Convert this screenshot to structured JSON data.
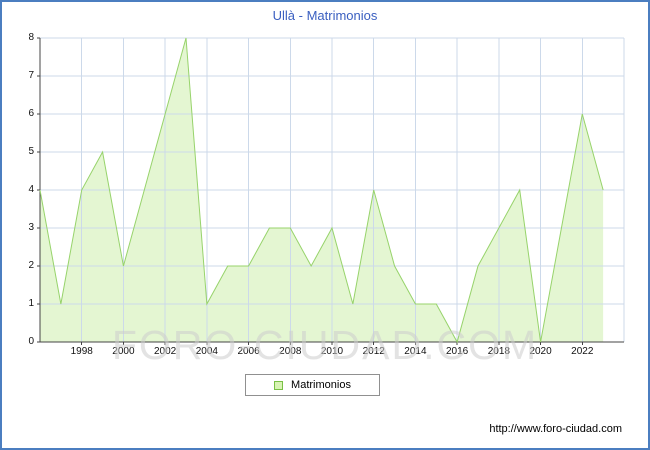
{
  "window": {
    "title": "Ullà - Matrimonios",
    "frame_color": "#4b7ec0",
    "title_color": "#3a5fc0"
  },
  "legend": {
    "label": "Matrimonios",
    "swatch_fill": "#d8f3b4",
    "swatch_border": "#79c045"
  },
  "watermark": "FORO-CIUDAD.COM",
  "footer": {
    "url": "http://www.foro-ciudad.com"
  },
  "chart_data": {
    "type": "area",
    "title": "Ullà - Matrimonios",
    "x": [
      1996,
      1997,
      1998,
      1999,
      2000,
      2001,
      2002,
      2003,
      2004,
      2005,
      2006,
      2007,
      2008,
      2009,
      2010,
      2011,
      2012,
      2013,
      2014,
      2015,
      2016,
      2017,
      2018,
      2019,
      2020,
      2021,
      2022,
      2023
    ],
    "series": [
      {
        "name": "Matrimonios",
        "values": [
          4,
          1,
          4,
          5,
          2,
          4,
          6,
          8,
          1,
          2,
          2,
          3,
          3,
          2,
          3,
          1,
          4,
          2,
          1,
          1,
          0,
          2,
          3,
          4,
          0,
          3,
          6,
          4
        ]
      }
    ],
    "xtick_labels": [
      1998,
      2000,
      2002,
      2004,
      2006,
      2008,
      2010,
      2012,
      2014,
      2016,
      2018,
      2020,
      2022
    ],
    "yticks": [
      0,
      1,
      2,
      3,
      4,
      5,
      6,
      7,
      8
    ],
    "ylim": [
      0,
      8
    ],
    "xlabel": "",
    "ylabel": "",
    "grid": true,
    "legend_position": "bottom-center",
    "fill_color": "#e4f6d2",
    "line_color": "#97d36b",
    "grid_color": "#ccd9ea",
    "axis_color": "#444444"
  }
}
